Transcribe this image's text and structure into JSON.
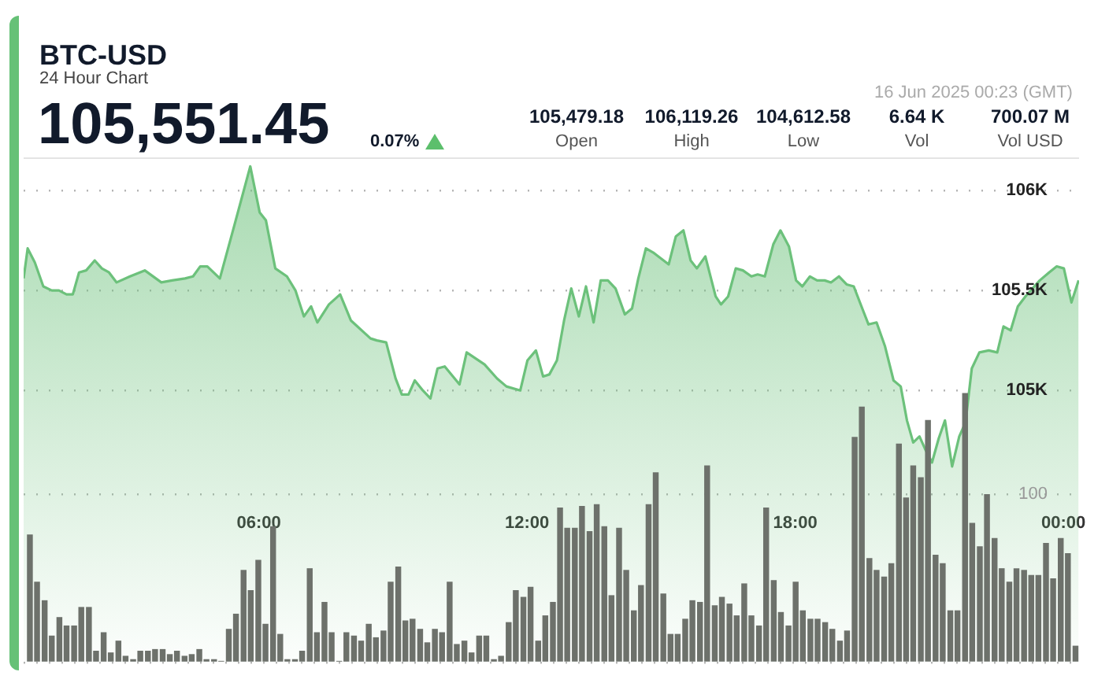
{
  "chart_data": {
    "type": "area",
    "title": "BTC-USD",
    "subtitle": "24 Hour Chart",
    "annotations": [
      "105,551.45",
      "0.07%",
      "16 Jun 2025 00:23 (GMT)",
      "105,479.18",
      "Open",
      "106,119.26",
      "High",
      "104,612.58",
      "Low",
      "6.64 K",
      "Vol",
      "700.07 M",
      "Vol USD"
    ],
    "xlim": [
      0.74,
      24.35
    ],
    "xticks": [
      {
        "value": 6,
        "label": "06:00"
      },
      {
        "value": 12,
        "label": "12:00"
      },
      {
        "value": 18,
        "label": "18:00"
      },
      {
        "value": 24,
        "label": "00:00"
      }
    ],
    "ylim": [
      103640,
      106165
    ],
    "yticks": [
      {
        "value": 105000,
        "label": "105K"
      },
      {
        "value": 105500,
        "label": "105.5K"
      },
      {
        "value": 106000,
        "label": "106K"
      }
    ],
    "y2lim": [
      0,
      300
    ],
    "y2ticks": [
      {
        "value": 0,
        "label": null
      },
      100
    ],
    "grid": "y",
    "legend": false,
    "series": [
      {
        "color": "#6cc17b",
        "x": [
          0.74,
          0.83,
          0.99,
          1.18,
          1.37,
          1.53,
          1.7,
          1.84,
          1.98,
          2.14,
          2.33,
          2.49,
          2.65,
          2.82,
          3.12,
          3.45,
          3.82,
          4.06,
          4.35,
          4.53,
          4.69,
          4.85,
          5.13,
          5.46,
          5.81,
          6.02,
          6.16,
          6.37,
          6.63,
          6.82,
          7.01,
          7.17,
          7.31,
          7.57,
          7.82,
          8.06,
          8.5,
          8.64,
          8.85,
          9.06,
          9.2,
          9.35,
          9.49,
          9.67,
          9.84,
          10.0,
          10.16,
          10.49,
          10.65,
          11.05,
          11.33,
          11.54,
          11.85,
          12.01,
          12.2,
          12.36,
          12.5,
          12.67,
          12.83,
          12.99,
          13.16,
          13.32,
          13.49,
          13.65,
          13.81,
          13.98,
          14.19,
          14.35,
          14.49,
          14.66,
          14.82,
          15.17,
          15.33,
          15.5,
          15.66,
          15.8,
          15.99,
          16.22,
          16.34,
          16.5,
          16.67,
          16.83,
          17.02,
          17.16,
          17.32,
          17.51,
          17.67,
          17.86,
          18.02,
          18.16,
          18.33,
          18.49,
          18.66,
          18.8,
          18.98,
          19.15,
          19.31,
          19.5,
          19.64,
          19.82,
          20.01,
          20.2,
          20.36,
          20.5,
          20.64,
          20.78,
          20.9,
          21.06,
          21.21,
          21.35,
          21.51,
          21.67,
          21.81,
          21.95,
          22.12,
          22.33,
          22.52,
          22.66,
          22.82,
          22.98,
          23.15,
          23.31,
          23.47,
          23.68,
          23.85,
          24.01,
          24.18,
          24.34
        ],
        "values": [
          105560,
          105710,
          105640,
          105520,
          105500,
          105500,
          105480,
          105480,
          105590,
          105600,
          105650,
          105610,
          105590,
          105540,
          105570,
          105600,
          105540,
          105550,
          105560,
          105570,
          105620,
          105620,
          105560,
          105830,
          106120,
          105890,
          105850,
          105610,
          105570,
          105500,
          105370,
          105420,
          105340,
          105430,
          105480,
          105350,
          105260,
          105250,
          105240,
          105060,
          104980,
          104980,
          105050,
          105000,
          104960,
          105110,
          105120,
          105030,
          105190,
          105130,
          105060,
          105020,
          105000,
          105150,
          105200,
          105070,
          105080,
          105150,
          105350,
          105510,
          105370,
          105520,
          105340,
          105550,
          105550,
          105510,
          105380,
          105410,
          105560,
          105710,
          105690,
          105630,
          105770,
          105800,
          105650,
          105610,
          105670,
          105470,
          105430,
          105470,
          105610,
          105600,
          105570,
          105580,
          105570,
          105730,
          105800,
          105720,
          105550,
          105520,
          105570,
          105550,
          105550,
          105540,
          105570,
          105530,
          105520,
          105410,
          105330,
          105340,
          105220,
          105050,
          105020,
          104850,
          104740,
          104770,
          104710,
          104640,
          104760,
          104850,
          104620,
          104770,
          104840,
          105110,
          105190,
          105200,
          105190,
          105320,
          105300,
          105420,
          105470,
          105510,
          105550,
          105590,
          105620,
          105610,
          105440,
          105550
        ]
      },
      {
        "type": "bar",
        "axis": "y2",
        "color": "#6d716b",
        "x": [
          0.88,
          1.04,
          1.21,
          1.37,
          1.54,
          1.7,
          1.87,
          2.03,
          2.2,
          2.36,
          2.53,
          2.69,
          2.86,
          3.02,
          3.19,
          3.35,
          3.52,
          3.68,
          3.85,
          4.01,
          4.17,
          4.34,
          4.5,
          4.67,
          4.83,
          5.0,
          5.16,
          5.33,
          5.49,
          5.66,
          5.82,
          5.99,
          6.15,
          6.32,
          6.48,
          6.64,
          6.81,
          6.97,
          7.14,
          7.3,
          7.47,
          7.63,
          7.8,
          7.96,
          8.13,
          8.29,
          8.46,
          8.62,
          8.79,
          8.95,
          9.12,
          9.28,
          9.44,
          9.61,
          9.77,
          9.94,
          10.1,
          10.27,
          10.43,
          10.6,
          10.76,
          10.93,
          11.09,
          11.26,
          11.42,
          11.59,
          11.75,
          11.92,
          12.08,
          12.25,
          12.41,
          12.58,
          12.74,
          12.9,
          13.07,
          13.23,
          13.4,
          13.56,
          13.73,
          13.89,
          14.06,
          14.22,
          14.39,
          14.55,
          14.72,
          14.88,
          15.05,
          15.21,
          15.37,
          15.54,
          15.7,
          15.87,
          16.03,
          16.2,
          16.36,
          16.53,
          16.69,
          16.86,
          17.02,
          17.19,
          17.35,
          17.52,
          17.68,
          17.85,
          18.01,
          18.17,
          18.34,
          18.5,
          18.67,
          18.83,
          19.0,
          19.16,
          19.33,
          19.49,
          19.66,
          19.82,
          19.99,
          20.15,
          20.32,
          20.48,
          20.64,
          20.81,
          20.97,
          21.14,
          21.3,
          21.47,
          21.63,
          21.8,
          21.96,
          22.13,
          22.29,
          22.46,
          22.62,
          22.79,
          22.95,
          23.12,
          23.28,
          23.44,
          23.61,
          23.77,
          23.94,
          24.1,
          24.27
        ],
        "values": [
          76,
          48,
          37,
          16,
          27,
          22,
          22,
          33,
          33,
          7,
          18,
          6,
          13,
          4,
          2,
          7,
          7,
          8,
          8,
          5,
          7,
          4,
          5,
          8,
          2,
          2,
          1,
          20,
          29,
          55,
          43,
          61,
          23,
          81,
          17,
          2,
          2,
          7,
          56,
          18,
          36,
          18,
          1,
          18,
          16,
          13,
          23,
          15,
          19,
          48,
          57,
          25,
          26,
          20,
          12,
          20,
          18,
          48,
          11,
          13,
          6,
          16,
          16,
          2,
          4,
          24,
          43,
          39,
          45,
          13,
          28,
          36,
          92,
          80,
          80,
          93,
          78,
          94,
          81,
          40,
          80,
          55,
          31,
          46,
          94,
          113,
          41,
          17,
          17,
          26,
          37,
          36,
          117,
          34,
          39,
          35,
          28,
          47,
          28,
          22,
          92,
          49,
          30,
          22,
          48,
          31,
          26,
          26,
          24,
          20,
          13,
          19,
          134,
          152,
          62,
          55,
          51,
          59,
          130,
          98,
          117,
          110,
          144,
          64,
          59,
          31,
          31,
          160,
          83,
          69,
          100,
          74,
          56,
          48,
          56,
          55,
          52,
          52,
          71,
          50,
          74,
          65,
          10
        ]
      }
    ]
  }
}
